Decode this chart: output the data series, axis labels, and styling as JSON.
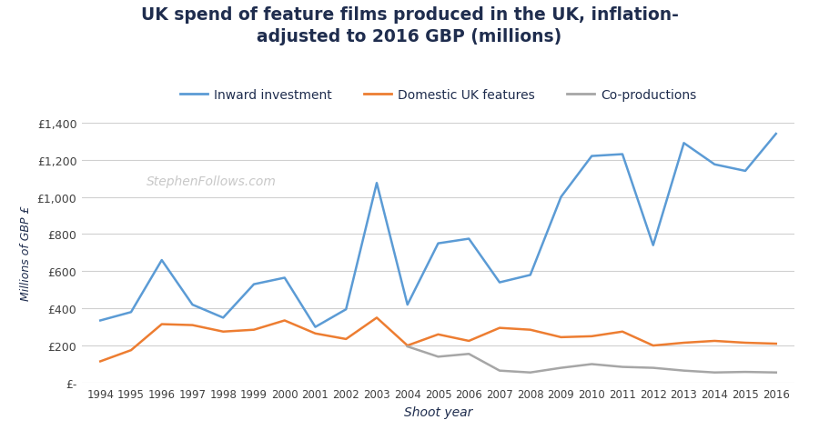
{
  "title_line1": "UK spend of feature films produced in the UK, inflation-",
  "title_line2": "adjusted to 2016 GBP (millions)",
  "xlabel": "Shoot year",
  "ylabel": "Millions of GBP £",
  "watermark": "StephenFollows.com",
  "years": [
    1994,
    1995,
    1996,
    1997,
    1998,
    1999,
    2000,
    2001,
    2002,
    2003,
    2004,
    2005,
    2006,
    2007,
    2008,
    2009,
    2010,
    2011,
    2012,
    2013,
    2014,
    2015,
    2016
  ],
  "inward_investment": [
    335,
    380,
    660,
    420,
    350,
    530,
    565,
    300,
    395,
    1075,
    420,
    750,
    775,
    540,
    580,
    1000,
    1220,
    1230,
    740,
    1290,
    1175,
    1140,
    1340
  ],
  "domestic_uk": [
    115,
    175,
    315,
    310,
    275,
    285,
    335,
    265,
    235,
    350,
    200,
    260,
    225,
    295,
    285,
    245,
    250,
    275,
    200,
    215,
    225,
    215,
    210
  ],
  "co_productions": [
    null,
    null,
    null,
    null,
    null,
    null,
    null,
    null,
    null,
    null,
    195,
    140,
    155,
    65,
    55,
    80,
    100,
    85,
    80,
    65,
    55,
    58,
    55
  ],
  "color_inward": "#5b9bd5",
  "color_domestic": "#ed7d31",
  "color_coproductions": "#a6a6a6",
  "background_color": "#ffffff",
  "title_color": "#1f2d4e",
  "watermark_color": "#c8c8c8",
  "grid_color": "#d0d0d0",
  "tick_label_color": "#404040",
  "ylim": [
    0,
    1400
  ],
  "yticks": [
    0,
    200,
    400,
    600,
    800,
    1000,
    1200,
    1400
  ]
}
